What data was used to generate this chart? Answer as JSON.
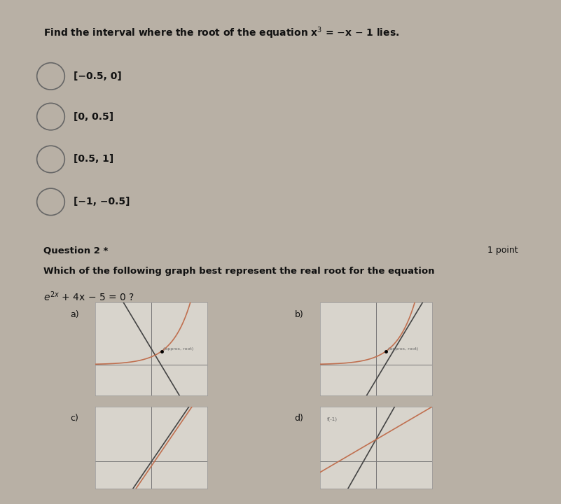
{
  "bg_color": "#b8b0a5",
  "box1_bg": "#d0ccc5",
  "box2_bg": "#d0ccc5",
  "q1_title": "Find the interval where the root of the equation x³ = −x − 1 lies.",
  "q1_options": [
    "[−0.5, 0]",
    "[0, 0.5]",
    "[0.5, 1]",
    "[−1, −0.5]"
  ],
  "q2_header": "Question 2 *",
  "q2_points": "1 point",
  "q2_text1": "Which of the following graph best represent the real root for the equation",
  "text_color": "#111111",
  "dark_gray": "#444444",
  "mid_gray": "#888888",
  "light_gray": "#aaaaaa",
  "curve_color": "#c07050",
  "annot_color": "#666666",
  "graph_line_color": "#444444",
  "graph_bg": "#d8d4cc"
}
